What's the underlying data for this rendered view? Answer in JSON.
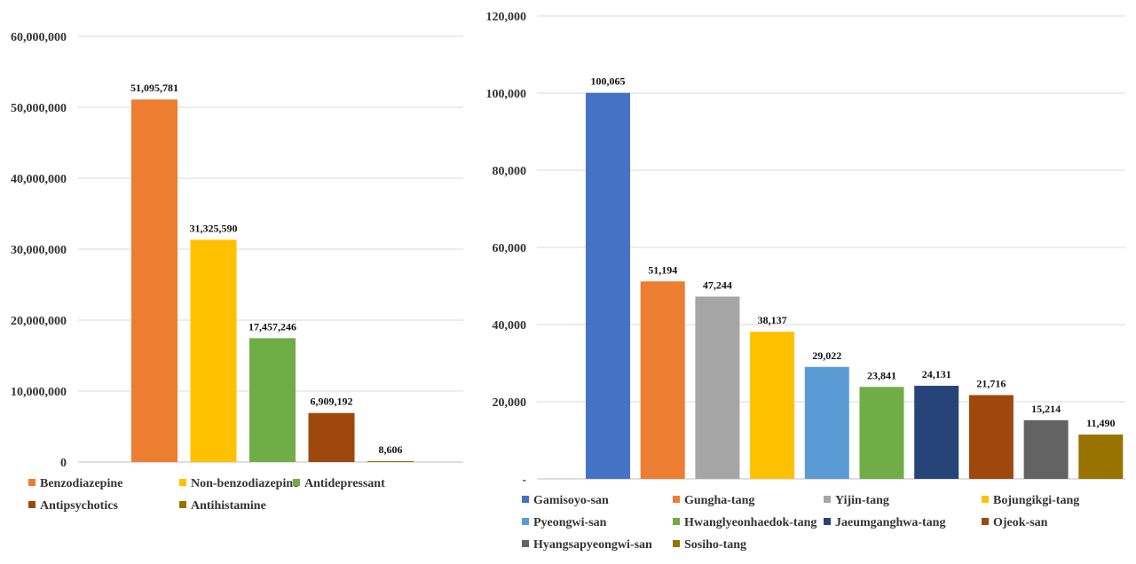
{
  "chart_data": [
    {
      "type": "bar",
      "title": "",
      "xlabel": "",
      "ylabel": "",
      "ylim": [
        0,
        60000000
      ],
      "yticks": [
        0,
        10000000,
        20000000,
        30000000,
        40000000,
        50000000,
        60000000
      ],
      "ytick_labels": [
        "0",
        "10,000,000",
        "20,000,000",
        "30,000,000",
        "40,000,000",
        "50,000,000",
        "60,000,000"
      ],
      "grid": true,
      "legend_position": "bottom",
      "categories": [
        "Benzodiazepine",
        "Non-benzodiazepine",
        "Antidepressant",
        "Antipsychotics",
        "Antihistamine"
      ],
      "values": [
        51095781,
        31325590,
        17457246,
        6909192,
        8606
      ],
      "value_labels": [
        "51,095,781",
        "31,325,590",
        "17,457,246",
        "6,909,192",
        "8,606"
      ],
      "colors": [
        "#ED7D31",
        "#FFC000",
        "#70AD47",
        "#9E480E",
        "#997300"
      ]
    },
    {
      "type": "bar",
      "title": "",
      "xlabel": "",
      "ylabel": "",
      "ylim": [
        0,
        120000
      ],
      "yticks": [
        0,
        20000,
        40000,
        60000,
        80000,
        100000,
        120000
      ],
      "ytick_labels": [
        "-",
        "20,000",
        "40,000",
        "60,000",
        "80,000",
        "100,000",
        "120,000"
      ],
      "grid": true,
      "legend_position": "bottom",
      "categories": [
        "Gamisoyo-san",
        "Gungha-tang",
        "Yijin-tang",
        "Bojungikgi-tang",
        "Pyeongwi-san",
        "Hwanglyeonhaedok-tang",
        "Jaeumganghwa-tang",
        "Ojeok-san",
        "Hyangsapyeongwi-san",
        "Sosiho-tang"
      ],
      "values": [
        100065,
        51194,
        47244,
        38137,
        29022,
        23841,
        24131,
        21716,
        15214,
        11490
      ],
      "value_labels": [
        "100,065",
        "51,194",
        "47,244",
        "38,137",
        "29,022",
        "23,841",
        "24,131",
        "21,716",
        "15,214",
        "11,490"
      ],
      "colors": [
        "#4472C4",
        "#ED7D31",
        "#A5A5A5",
        "#FFC000",
        "#5B9BD5",
        "#70AD47",
        "#264478",
        "#9E480E",
        "#636363",
        "#997300"
      ]
    }
  ]
}
